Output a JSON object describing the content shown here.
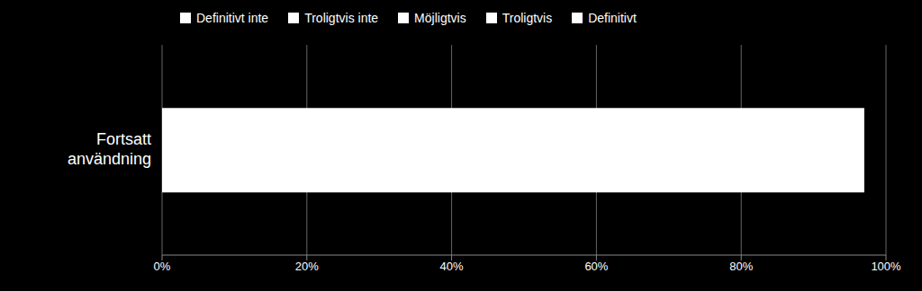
{
  "chart_data": {
    "type": "bar",
    "orientation": "horizontal",
    "categories": [
      "Fortsatt\nanvändning"
    ],
    "values": [
      97
    ],
    "color": "#ffffff",
    "xlim": [
      0,
      100
    ],
    "xticks": [
      {
        "value": 0,
        "label": "0%"
      },
      {
        "value": 20,
        "label": "20%"
      },
      {
        "value": 40,
        "label": "40%"
      },
      {
        "value": 60,
        "label": "60%"
      },
      {
        "value": 80,
        "label": "80%"
      },
      {
        "value": 100,
        "label": "100%"
      }
    ],
    "grid": true,
    "legend": "upper left",
    "legend_items": [
      {
        "name": "Definitivt inte",
        "color": "#ffffff"
      },
      {
        "name": "Troligtvis inte",
        "color": "#ffffff"
      },
      {
        "name": "Möjligtvis",
        "color": "#ffffff"
      },
      {
        "name": "Troligtvis",
        "color": "#ffffff"
      },
      {
        "name": "Definitivt",
        "color": "#ffffff"
      }
    ]
  }
}
